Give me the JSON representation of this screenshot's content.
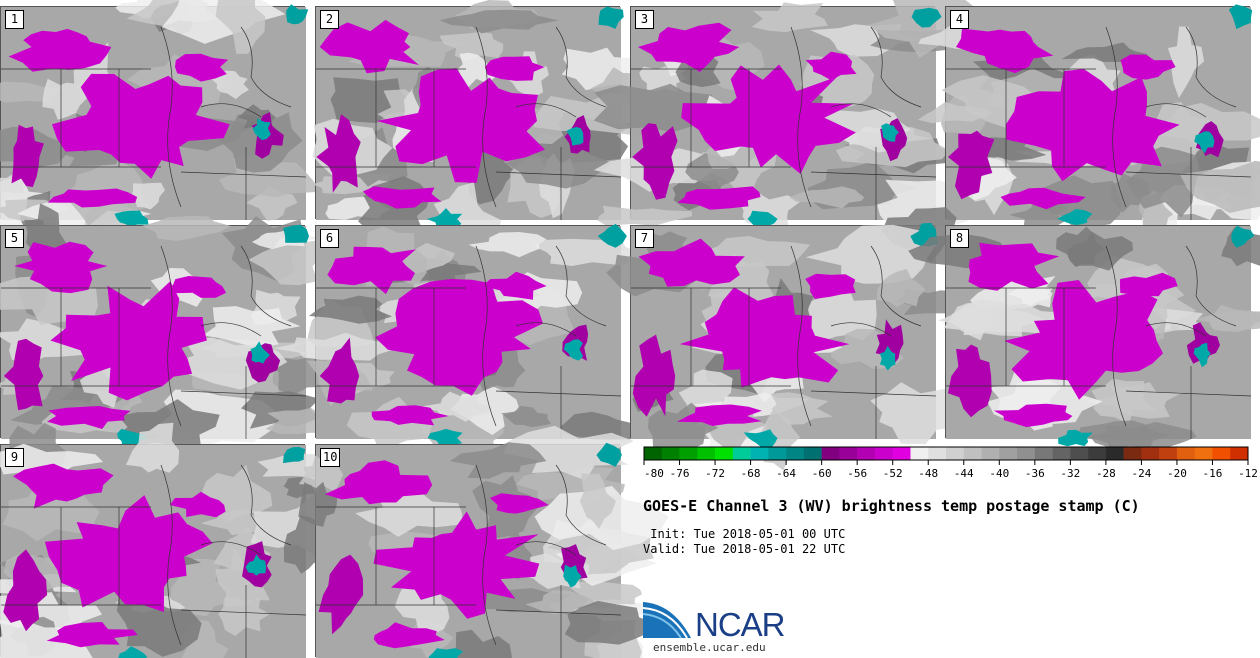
{
  "panels": [
    {
      "label": "1"
    },
    {
      "label": "2"
    },
    {
      "label": "3"
    },
    {
      "label": "4"
    },
    {
      "label": "5"
    },
    {
      "label": "6"
    },
    {
      "label": "7"
    },
    {
      "label": "8"
    },
    {
      "label": "9"
    },
    {
      "label": "10"
    }
  ],
  "colorbar": {
    "ticks": [
      "-80",
      "-76",
      "-72",
      "-68",
      "-64",
      "-60",
      "-56",
      "-52",
      "-48",
      "-44",
      "-40",
      "-36",
      "-32",
      "-28",
      "-24",
      "-20",
      "-16",
      "-12"
    ],
    "colors": [
      "#006400",
      "#008000",
      "#00a000",
      "#00c000",
      "#00e000",
      "#00cc99",
      "#00b3b3",
      "#009999",
      "#008585",
      "#007070",
      "#800080",
      "#990099",
      "#b300b3",
      "#cc00cc",
      "#e000e0",
      "#f0f0f0",
      "#e0e0e0",
      "#d0d0d0",
      "#c0c0c0",
      "#b0b0b0",
      "#a0a0a0",
      "#909090",
      "#787878",
      "#646464",
      "#4e4e4e",
      "#3c3c3c",
      "#2a2a2a",
      "#7a2a10",
      "#a03010",
      "#c04010",
      "#e06010",
      "#f07010",
      "#f05000",
      "#d03000"
    ]
  },
  "title": "GOES-E Channel 3 (WV) brightness temp postage stamp (C)",
  "init": " Init: Tue 2018-05-01 00 UTC",
  "valid": "Valid: Tue 2018-05-01 22 UTC",
  "logo": {
    "text": "NCAR",
    "url": "ensemble.ucar.edu"
  }
}
